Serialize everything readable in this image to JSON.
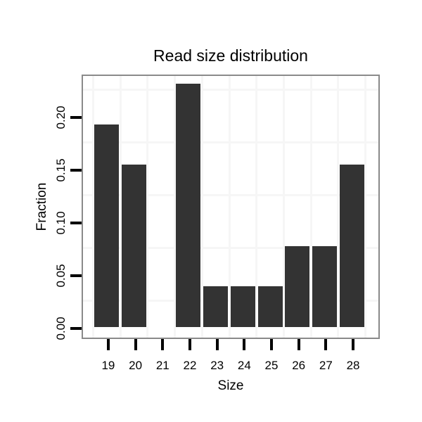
{
  "chart_data": {
    "type": "bar",
    "title": "Read size distribution",
    "xlabel": "Size",
    "ylabel": "Fraction",
    "categories": [
      "19",
      "20",
      "21",
      "22",
      "23",
      "24",
      "25",
      "26",
      "27",
      "28"
    ],
    "values": [
      0.1923,
      0.1538,
      0.0,
      0.2308,
      0.0385,
      0.0385,
      0.0385,
      0.0769,
      0.0769,
      0.1538
    ],
    "ylim": [
      0,
      0.24
    ],
    "yticks": [
      0.0,
      0.05,
      0.1,
      0.15,
      0.2
    ],
    "ytick_labels": [
      "0.00",
      "0.05",
      "0.10",
      "0.15",
      "0.20"
    ],
    "minor_gridlines_y": [
      0.025,
      0.075,
      0.125,
      0.175,
      0.225
    ],
    "grid": "faint minor gridlines only, vertical lines at category boundaries",
    "legend": "none",
    "colors": {
      "bar": "#333333",
      "panel_border": "#8a8a8a",
      "gridline": "#f6f6f6",
      "tick": "#000000",
      "text": "#000000",
      "background": "#ffffff"
    }
  }
}
